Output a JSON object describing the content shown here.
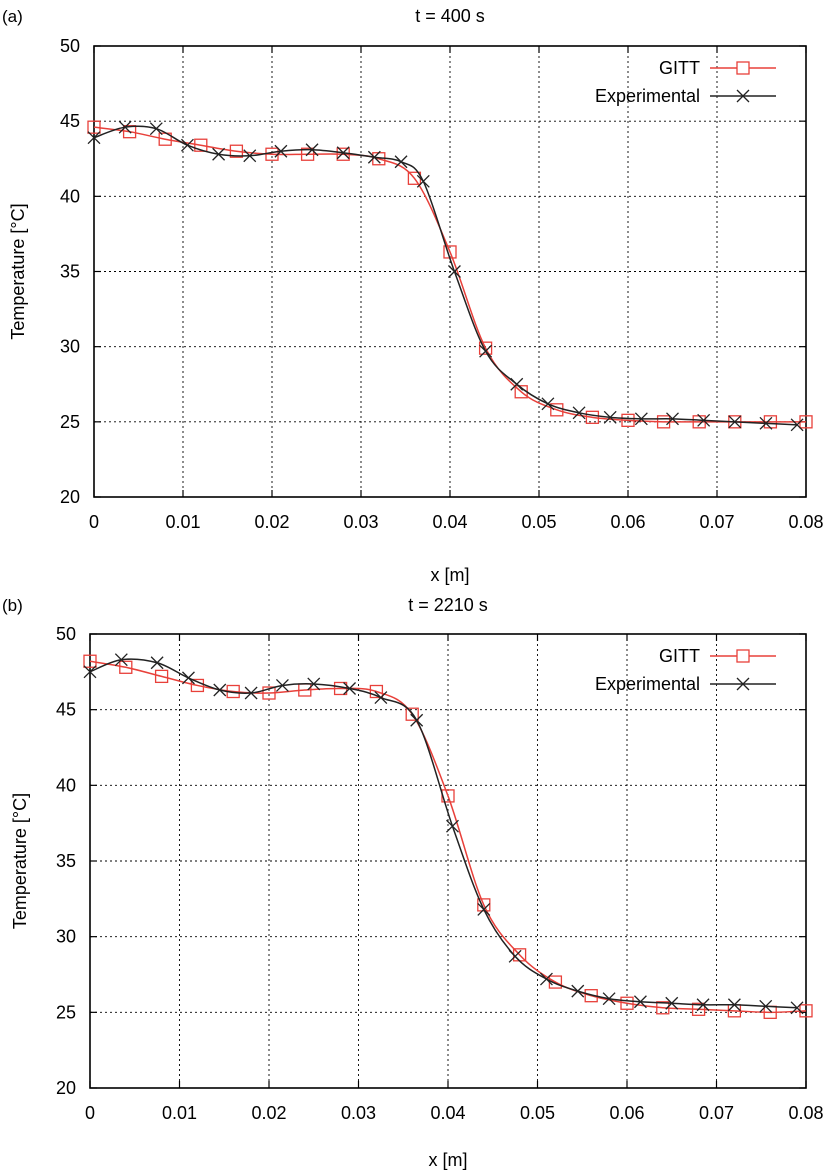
{
  "chart_data": [
    {
      "type": "line",
      "panel_label": "(a)",
      "title": "t = 400 s",
      "xlabel": "x [m]",
      "ylabel": "Temperature [°C]",
      "xlim": [
        0,
        0.08
      ],
      "ylim": [
        20,
        50
      ],
      "xticks": [
        0,
        0.01,
        0.02,
        0.03,
        0.04,
        0.05,
        0.06,
        0.07,
        0.08
      ],
      "xtick_labels": [
        "0",
        "0.01",
        "0.02",
        "0.03",
        "0.04",
        "0.05",
        "0.06",
        "0.07",
        "0.08"
      ],
      "yticks": [
        20,
        25,
        30,
        35,
        40,
        45,
        50
      ],
      "ytick_labels": [
        "20",
        "25",
        "30",
        "35",
        "40",
        "45",
        "50"
      ],
      "grid": true,
      "legend_position": "top-right",
      "series": [
        {
          "name": "GITT",
          "color": "#e8403a",
          "marker": "square",
          "x": [
            0,
            0.004,
            0.008,
            0.012,
            0.016,
            0.02,
            0.024,
            0.028,
            0.032,
            0.036,
            0.04,
            0.044,
            0.048,
            0.052,
            0.056,
            0.06,
            0.064,
            0.068,
            0.072,
            0.076,
            0.08
          ],
          "y": [
            44.6,
            44.3,
            43.8,
            43.4,
            43.0,
            42.8,
            42.8,
            42.8,
            42.5,
            41.2,
            36.3,
            29.9,
            27.0,
            25.8,
            25.3,
            25.1,
            25.0,
            25.0,
            25.0,
            25.0,
            25.0
          ]
        },
        {
          "name": "Experimental",
          "color": "#222222",
          "marker": "cross",
          "x": [
            0,
            0.0035,
            0.007,
            0.0105,
            0.014,
            0.0175,
            0.021,
            0.0245,
            0.028,
            0.0315,
            0.0345,
            0.037,
            0.0405,
            0.044,
            0.0475,
            0.051,
            0.0545,
            0.058,
            0.0615,
            0.065,
            0.0685,
            0.072,
            0.0755,
            0.079
          ],
          "y": [
            43.9,
            44.6,
            44.5,
            43.4,
            42.8,
            42.7,
            43.0,
            43.1,
            42.9,
            42.6,
            42.3,
            41.0,
            35.0,
            29.7,
            27.5,
            26.2,
            25.6,
            25.3,
            25.2,
            25.2,
            25.1,
            25.0,
            24.9,
            24.8
          ]
        }
      ]
    },
    {
      "type": "line",
      "panel_label": "(b)",
      "title": "t = 2210 s",
      "xlabel": "x [m]",
      "ylabel": "Temperature [°C]",
      "xlim": [
        0,
        0.08
      ],
      "ylim": [
        20,
        50
      ],
      "xticks": [
        0,
        0.01,
        0.02,
        0.03,
        0.04,
        0.05,
        0.06,
        0.07,
        0.08
      ],
      "xtick_labels": [
        "0",
        "0.01",
        "0.02",
        "0.03",
        "0.04",
        "0.05",
        "0.06",
        "0.07",
        "0.08"
      ],
      "yticks": [
        20,
        25,
        30,
        35,
        40,
        45,
        50
      ],
      "ytick_labels": [
        "20",
        "25",
        "30",
        "35",
        "40",
        "45",
        "50"
      ],
      "grid": true,
      "legend_position": "top-right",
      "series": [
        {
          "name": "GITT",
          "color": "#e8403a",
          "marker": "square",
          "x": [
            0,
            0.004,
            0.008,
            0.012,
            0.016,
            0.02,
            0.024,
            0.028,
            0.032,
            0.036,
            0.04,
            0.044,
            0.048,
            0.052,
            0.056,
            0.06,
            0.064,
            0.068,
            0.072,
            0.076,
            0.08
          ],
          "y": [
            48.2,
            47.8,
            47.2,
            46.6,
            46.2,
            46.1,
            46.3,
            46.4,
            46.2,
            44.7,
            39.3,
            32.1,
            28.8,
            27.0,
            26.1,
            25.6,
            25.3,
            25.2,
            25.1,
            25.0,
            25.1
          ]
        },
        {
          "name": "Experimental",
          "color": "#222222",
          "marker": "cross",
          "x": [
            0,
            0.0035,
            0.0075,
            0.011,
            0.0145,
            0.018,
            0.0215,
            0.025,
            0.029,
            0.0325,
            0.0365,
            0.0405,
            0.044,
            0.0475,
            0.051,
            0.0545,
            0.058,
            0.0615,
            0.065,
            0.0685,
            0.072,
            0.0755,
            0.079
          ],
          "y": [
            47.5,
            48.3,
            48.1,
            47.1,
            46.3,
            46.1,
            46.6,
            46.7,
            46.4,
            45.8,
            44.3,
            37.3,
            31.8,
            28.7,
            27.2,
            26.4,
            25.9,
            25.7,
            25.6,
            25.5,
            25.5,
            25.4,
            25.3
          ]
        }
      ]
    }
  ]
}
